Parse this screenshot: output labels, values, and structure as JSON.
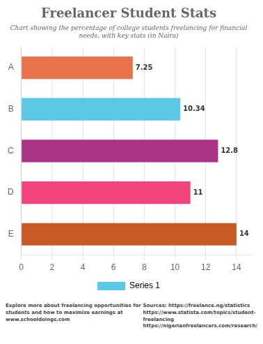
{
  "chart_data": {
    "type": "bar",
    "orientation": "horizontal",
    "title": "Freelancer Student Stats",
    "subtitle": "Chart showing the percentage of college students freelancing for financial\nneeds, with key stats (in Naira)",
    "categories": [
      "A",
      "B",
      "C",
      "D",
      "E"
    ],
    "series": [
      {
        "name": "Series 1",
        "color": "#5BC8E8",
        "values": [
          7.25,
          10.34,
          12.8,
          11,
          14
        ],
        "colors": [
          "#E8734A",
          "#5BC8E8",
          "#AA3388",
          "#F0447A",
          "#C85A25"
        ]
      }
    ],
    "xlim": [
      0,
      15
    ],
    "xticks": [
      0,
      2,
      4,
      6,
      8,
      10,
      12,
      14
    ],
    "grid": true,
    "legend": "bottom",
    "data_labels": true,
    "annotations": [
      "Explore more about freelancing opportunities for\nstudents and how to maximize earnings at\nwww.schooldoings.com",
      "Sources: https://freelance.ng/statistics\nhttps://www.statista.com/topics/student-\nfreelancing\nhttps://nigerianfreelancers.com/research/"
    ]
  }
}
